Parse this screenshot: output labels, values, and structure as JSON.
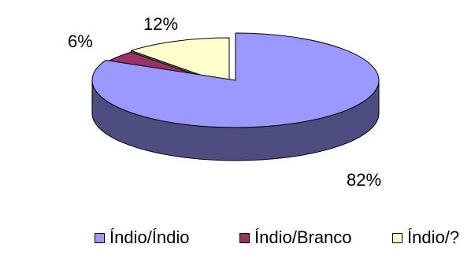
{
  "chart_data": {
    "type": "pie",
    "categories": [
      "Índio/Índio",
      "Índio/Branco",
      "Índio/?"
    ],
    "values": [
      82,
      6,
      12
    ],
    "data_labels": [
      "82%",
      "6%",
      "12%"
    ],
    "colors": [
      "#9999ff",
      "#993366",
      "#ffffcc"
    ],
    "side_colors": [
      "#4d4d80",
      "#4d1a33",
      "#808066"
    ],
    "exploded": [
      "Índio/Branco",
      "Índio/?"
    ],
    "legend": "bottom",
    "style": "3d"
  }
}
